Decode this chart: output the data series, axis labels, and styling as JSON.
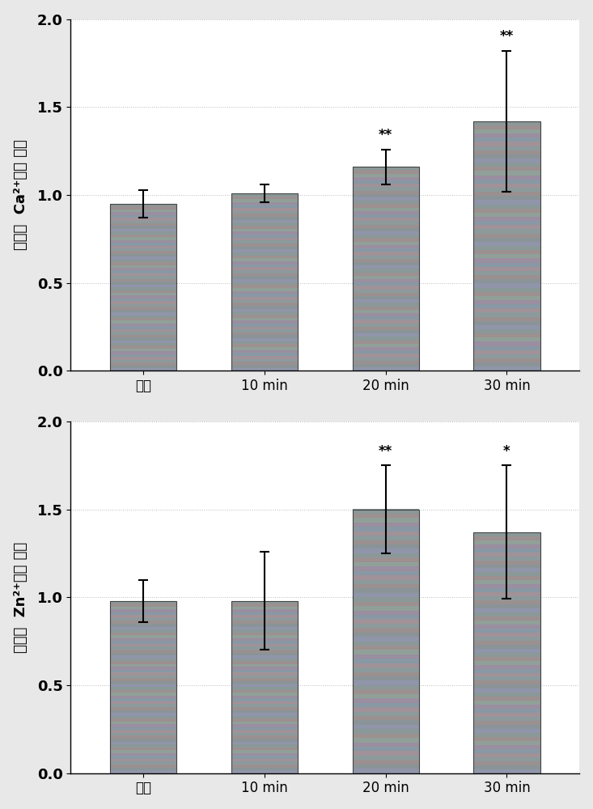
{
  "top_chart": {
    "ylabel_lines": [
      "细胞内 Ca²⁺相对 浓度"
    ],
    "ylabel_display": "细胞内  Ca²⁺相对 浓度",
    "categories": [
      "对照",
      "10 min",
      "20 min",
      "30 min"
    ],
    "values": [
      0.95,
      1.01,
      1.16,
      1.42
    ],
    "errors": [
      0.08,
      0.05,
      0.1,
      0.4
    ],
    "significance": [
      "",
      "",
      "**",
      "**"
    ],
    "ylim": [
      0.0,
      2.0
    ],
    "yticks": [
      0.0,
      0.5,
      1.0,
      1.5,
      2.0
    ]
  },
  "bottom_chart": {
    "ylabel_lines": [
      "细胞内 Zn²⁺相对 浓度"
    ],
    "ylabel_display": "细胞内  Zn²⁺相对 浓度",
    "categories": [
      "对照",
      "10 min",
      "20 min",
      "30 min"
    ],
    "values": [
      0.98,
      0.98,
      1.5,
      1.37
    ],
    "errors": [
      0.12,
      0.28,
      0.25,
      0.38
    ],
    "significance": [
      "",
      "",
      "**",
      "*"
    ],
    "ylim": [
      0.0,
      2.0
    ],
    "yticks": [
      0.0,
      0.5,
      1.0,
      1.5,
      2.0
    ]
  },
  "bar_color": "#8B8FA8",
  "bar_edge_color": "#444444",
  "bar_width": 0.55,
  "error_capsize": 4,
  "error_linewidth": 1.5,
  "sig_fontsize": 12,
  "tick_fontsize": 12,
  "label_fontsize": 13,
  "background_color": "#ffffff",
  "plot_background": "#e8e8e8",
  "grid_color": "#aaaaaa",
  "ytick_fontsize": 13
}
